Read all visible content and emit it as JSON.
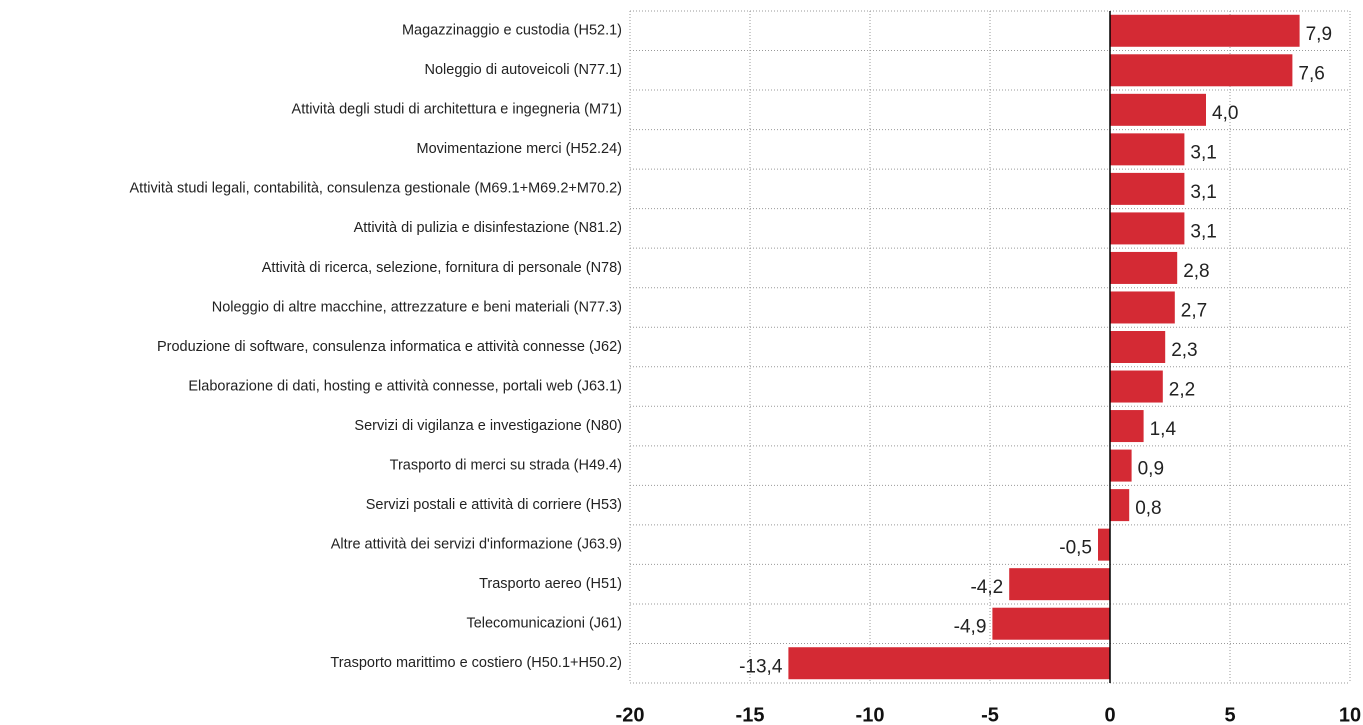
{
  "chart_data": {
    "type": "bar",
    "orientation": "horizontal",
    "categories": [
      "Magazzinaggio e custodia (H52.1)",
      "Noleggio di autoveicoli (N77.1)",
      "Attività degli studi di architettura e ingegneria (M71)",
      "Movimentazione merci (H52.24)",
      "Attività studi legali, contabilità, consulenza gestionale (M69.1+M69.2+M70.2)",
      "Attività di pulizia e disinfestazione (N81.2)",
      "Attività di ricerca, selezione, fornitura di personale (N78)",
      "Noleggio di altre macchine, attrezzature e beni materiali (N77.3)",
      "Produzione di software, consulenza informatica e attività connesse (J62)",
      "Elaborazione di dati, hosting e attività connesse, portali web (J63.1)",
      "Servizi di vigilanza e investigazione (N80)",
      "Trasporto di merci su strada (H49.4)",
      "Servizi postali e attività di corriere (H53)",
      "Altre attività dei servizi d'informazione (J63.9)",
      "Trasporto aereo (H51)",
      "Telecomunicazioni (J61)",
      "Trasporto marittimo e costiero (H50.1+H50.2)"
    ],
    "values": [
      7.9,
      7.6,
      4.0,
      3.1,
      3.1,
      3.1,
      2.8,
      2.7,
      2.3,
      2.2,
      1.4,
      0.9,
      0.8,
      -0.5,
      -4.2,
      -4.9,
      -13.4
    ],
    "value_labels": [
      "7,9",
      "7,6",
      "4,0",
      "3,1",
      "3,1",
      "3,1",
      "2,8",
      "2,7",
      "2,3",
      "2,2",
      "1,4",
      "0,9",
      "0,8",
      "-0,5",
      "-4,2",
      "-4,9",
      "-13,4"
    ],
    "color": "#d42a34",
    "xlim": [
      -20,
      10
    ],
    "xticks": [
      -20,
      -15,
      -10,
      -5,
      0,
      5,
      10
    ],
    "grid": true
  }
}
